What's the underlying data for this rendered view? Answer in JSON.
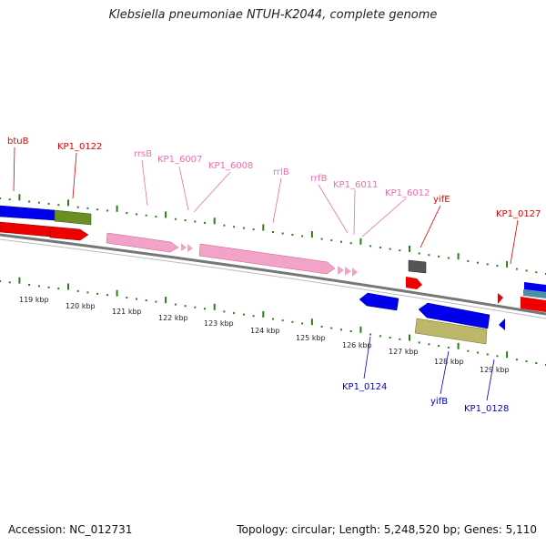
{
  "title": "Klebsiella pneumoniae NTUH-K2044, complete genome",
  "footer": {
    "accession": "Accession: NC_012731",
    "summary": "Topology: circular; Length: 5,248,520 bp; Genes: 5,110"
  },
  "colors": {
    "cds_forward": "#0000ee",
    "cds_reverse": "#ee0000",
    "rrna": "#f4a3c8",
    "trna": "#f4a3c8",
    "other_gene": "#6b8e23",
    "misc": "#555555",
    "gc_bar": "#bdb76b",
    "label_red": "#dd0000",
    "label_pink": "#e870a8",
    "label_blue": "#0000cc",
    "tick_green": "#2e7d1a",
    "backbone": "#888888"
  },
  "axis_ticks": [
    "119 kbp",
    "120 kbp",
    "121 kbp",
    "122 kbp",
    "123 kbp",
    "124 kbp",
    "125 kbp",
    "126 kbp",
    "127 kbp",
    "128 kbp",
    "129 kbp"
  ],
  "feature_labels": {
    "btuB": "btuB",
    "KP1_0122": "KP1_0122",
    "rrsB": "rrsB",
    "KP1_6007": "KP1_6007",
    "KP1_6008": "KP1_6008",
    "rrlB": "rrlB",
    "rrfB": "rrfB",
    "KP1_6011": "KP1_6011",
    "KP1_6012": "KP1_6012",
    "yifE": "yifE",
    "KP1_0127": "KP1_0127",
    "KP1_0124": "KP1_0124",
    "yifB": "yifB",
    "KP1_0128": "KP1_0128"
  }
}
